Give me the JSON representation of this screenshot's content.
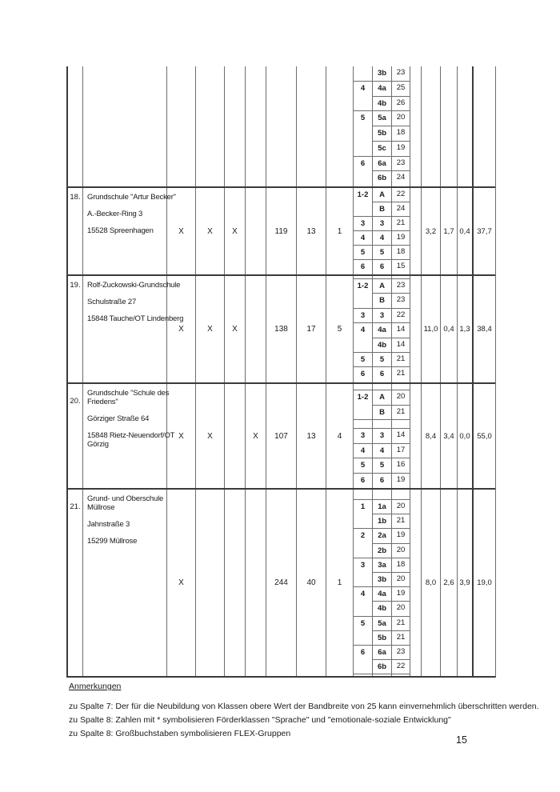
{
  "document": {
    "page_number": "15"
  },
  "notes": {
    "heading": "Anmerkungen",
    "items": [
      "zu Spalte 7: Der für die Neubildung von Klassen obere Wert der Bandbreite von 25 kann einvernehmlich überschritten werden.",
      "zu Spalte 8: Zahlen mit * symbolisieren Förderklassen \"Sprache\" und \"emotionale-soziale Entwicklung\"",
      "zu Spalte 8: Großbuchstaben symbolisieren FLEX-Gruppen"
    ]
  },
  "table": {
    "rows": [
      {
        "number": "",
        "school_lines": [],
        "marks": [
          "",
          "",
          "",
          ""
        ],
        "counts": [
          "",
          "",
          ""
        ],
        "grades": [
          {
            "grade": "",
            "classes": [
              {
                "label": "3b",
                "size": "23"
              }
            ]
          },
          {
            "grade": "4",
            "classes": [
              {
                "label": "4a",
                "size": "25"
              },
              {
                "label": "4b",
                "size": "26"
              }
            ]
          },
          {
            "grade": "5",
            "classes": [
              {
                "label": "5a",
                "size": "20"
              },
              {
                "label": "5b",
                "size": "18"
              },
              {
                "label": "5c",
                "size": "19"
              }
            ]
          },
          {
            "grade": "6",
            "classes": [
              {
                "label": "6a",
                "size": "23"
              },
              {
                "label": "6b",
                "size": "24"
              }
            ]
          }
        ],
        "stats": [
          "",
          "",
          "",
          ""
        ]
      },
      {
        "number": "18.",
        "school_lines": [
          [
            "Grundschule \"Artur Becker\""
          ],
          [
            "A.-Becker-Ring 3"
          ],
          [
            "15528 Spreenhagen"
          ]
        ],
        "marks": [
          "X",
          "X",
          "X",
          ""
        ],
        "counts": [
          "119",
          "13",
          "1"
        ],
        "grades": [
          {
            "grade": "1-2",
            "classes": [
              {
                "label": "A",
                "size": "22"
              },
              {
                "label": "B",
                "size": "24"
              }
            ]
          },
          {
            "grade": "3",
            "classes": [
              {
                "label": "3",
                "size": "21"
              }
            ]
          },
          {
            "grade": "4",
            "classes": [
              {
                "label": "4",
                "size": "19"
              }
            ]
          },
          {
            "grade": "5",
            "classes": [
              {
                "label": "5",
                "size": "18"
              }
            ]
          },
          {
            "grade": "6",
            "classes": [
              {
                "label": "6",
                "size": "15"
              }
            ]
          }
        ],
        "stats": [
          "3,2",
          "1,7",
          "0,4",
          "37,7"
        ]
      },
      {
        "number": "19.",
        "school_lines": [
          [
            "Rolf-Zuckowski-Grundschule"
          ],
          [
            "Schulstraße 27"
          ],
          [
            "15848 Tauche/OT Lindenberg"
          ]
        ],
        "marks": [
          "X",
          "X",
          "X",
          ""
        ],
        "counts": [
          "138",
          "17",
          "5"
        ],
        "grades": [
          {
            "grade": "1-2",
            "classes": [
              {
                "label": "A",
                "size": "23"
              },
              {
                "label": "B",
                "size": "23"
              }
            ]
          },
          {
            "grade": "3",
            "classes": [
              {
                "label": "3",
                "size": "22"
              }
            ]
          },
          {
            "grade": "4",
            "classes": [
              {
                "label": "4a",
                "size": "14"
              },
              {
                "label": "4b",
                "size": "14"
              }
            ]
          },
          {
            "grade": "5",
            "classes": [
              {
                "label": "5",
                "size": "21"
              }
            ]
          },
          {
            "grade": "6",
            "classes": [
              {
                "label": "6",
                "size": "21"
              }
            ]
          }
        ],
        "stats": [
          "11,0",
          "0,4",
          "1,3",
          "38,4"
        ]
      },
      {
        "number": "20.",
        "school_lines": [
          [
            "Grundschule \"Schule des",
            "Friedens\""
          ],
          [
            "Görziger Straße 64"
          ],
          [
            "15848 Rietz-Neuendorf/OT",
            "Görzig"
          ]
        ],
        "marks": [
          "X",
          "X",
          "",
          "X"
        ],
        "counts": [
          "107",
          "13",
          "4"
        ],
        "grades": [
          {
            "grade": "1-2",
            "classes": [
              {
                "label": "A",
                "size": "20"
              },
              {
                "label": "B",
                "size": "21"
              }
            ]
          },
          {
            "grade": "3",
            "classes": [
              {
                "label": "3",
                "size": "14"
              }
            ]
          },
          {
            "grade": "4",
            "classes": [
              {
                "label": "4",
                "size": "17"
              }
            ]
          },
          {
            "grade": "5",
            "classes": [
              {
                "label": "5",
                "size": "16"
              }
            ]
          },
          {
            "grade": "6",
            "classes": [
              {
                "label": "6",
                "size": "19"
              }
            ]
          }
        ],
        "stats": [
          "8,4",
          "3,4",
          "0,0",
          "55,0"
        ]
      },
      {
        "number": "21.",
        "school_lines": [
          [
            "Grund- und Oberschule",
            "Müllrose"
          ],
          [
            "Jahnstraße 3"
          ],
          [
            "15299 Müllrose"
          ]
        ],
        "marks": [
          "X",
          "",
          "",
          ""
        ],
        "counts": [
          "244",
          "40",
          "1"
        ],
        "grades": [
          {
            "grade": "1",
            "classes": [
              {
                "label": "1a",
                "size": "20"
              },
              {
                "label": "1b",
                "size": "21"
              }
            ]
          },
          {
            "grade": "2",
            "classes": [
              {
                "label": "2a",
                "size": "19"
              },
              {
                "label": "2b",
                "size": "20"
              }
            ]
          },
          {
            "grade": "3",
            "classes": [
              {
                "label": "3a",
                "size": "18"
              },
              {
                "label": "3b",
                "size": "20"
              }
            ]
          },
          {
            "grade": "4",
            "classes": [
              {
                "label": "4a",
                "size": "19"
              },
              {
                "label": "4b",
                "size": "20"
              }
            ]
          },
          {
            "grade": "5",
            "classes": [
              {
                "label": "5a",
                "size": "21"
              },
              {
                "label": "5b",
                "size": "21"
              }
            ]
          },
          {
            "grade": "6",
            "classes": [
              {
                "label": "6a",
                "size": "23"
              },
              {
                "label": "6b",
                "size": "22"
              }
            ]
          }
        ],
        "stats": [
          "8,0",
          "2,6",
          "3,9",
          "19,0"
        ]
      }
    ]
  }
}
